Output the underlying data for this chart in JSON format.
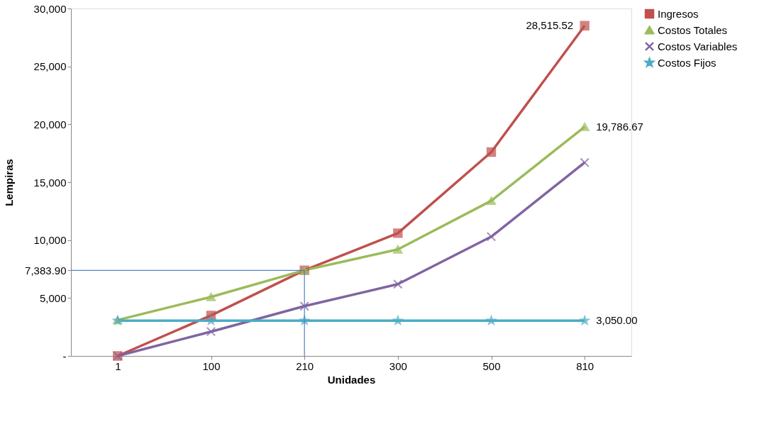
{
  "chart_data": {
    "type": "line",
    "xlabel": "Unidades",
    "ylabel": "Lempiras",
    "categories": [
      "1",
      "100",
      "210",
      "300",
      "500",
      "810"
    ],
    "series": [
      {
        "name": "Ingresos",
        "color": "#c0504d",
        "marker": "square",
        "values": [
          0,
          3500,
          7400,
          10600,
          17600,
          28515.52
        ]
      },
      {
        "name": "Costos Totales",
        "color": "#9bbb59",
        "marker": "triangle",
        "values": [
          3100,
          5100,
          7400,
          9200,
          13400,
          19786.67
        ]
      },
      {
        "name": "Costos Variables",
        "color": "#8064a2",
        "marker": "cross",
        "values": [
          0,
          2100,
          4300,
          6200,
          10300,
          16700
        ]
      },
      {
        "name": "Costos Fijos",
        "color": "#4bacc6",
        "marker": "star",
        "values": [
          3050,
          3050,
          3050,
          3050,
          3050,
          3050
        ]
      }
    ],
    "ylim": [
      0,
      30000
    ],
    "yticks": [
      {
        "value": 0,
        "label": "-"
      },
      {
        "value": 5000,
        "label": "5,000"
      },
      {
        "value": 7383.9,
        "label": "7,383.90"
      },
      {
        "value": 10000,
        "label": "10,000"
      },
      {
        "value": 15000,
        "label": "15,000"
      },
      {
        "value": 20000,
        "label": "20,000"
      },
      {
        "value": 25000,
        "label": "25,000"
      },
      {
        "value": 30000,
        "label": "30,000"
      }
    ],
    "ref_lines": [
      {
        "axis": "y",
        "value": 7383.9,
        "color": "#4f81bd"
      },
      {
        "axis": "x",
        "value": "210",
        "color": "#4f81bd"
      }
    ],
    "annotations": [
      {
        "text": "28,515.52",
        "x": "810",
        "y": 28515.52
      },
      {
        "text": "19,786.67",
        "x": "810",
        "y": 19786.67
      },
      {
        "text": "3,050.00",
        "x": "810",
        "y": 3050
      }
    ],
    "grid": false,
    "legend": "right",
    "line_style": "solid"
  }
}
